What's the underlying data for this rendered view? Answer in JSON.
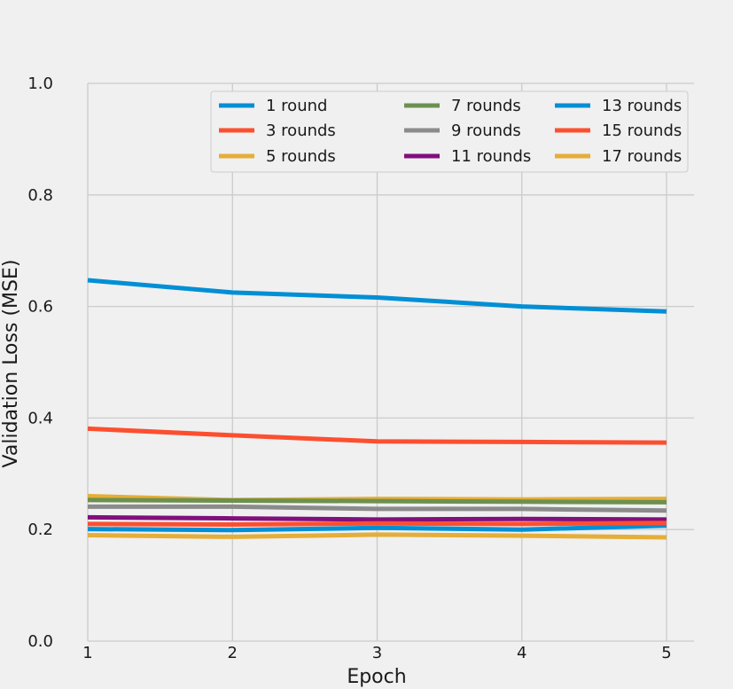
{
  "chart_data": {
    "type": "line",
    "title": "",
    "xlabel": "Epoch",
    "ylabel": "Validation Loss (MSE)",
    "x": [
      1,
      2,
      3,
      4,
      5
    ],
    "x_ticks": [
      1,
      2,
      3,
      4,
      5
    ],
    "xlim": [
      1,
      5
    ],
    "ylim": [
      0.0,
      1.0
    ],
    "y_ticks": [
      0.0,
      0.2,
      0.4,
      0.6,
      0.8,
      1.0
    ],
    "y_tick_labels": [
      "0.0",
      "0.2",
      "0.4",
      "0.6",
      "0.8",
      "1.0"
    ],
    "grid": true,
    "legend_position": "top-right",
    "legend_columns": 3,
    "series": [
      {
        "name": "1 round",
        "color": "#008fd5",
        "values": [
          0.647,
          0.625,
          0.616,
          0.6,
          0.591
        ]
      },
      {
        "name": "3 rounds",
        "color": "#fc4f30",
        "values": [
          0.381,
          0.369,
          0.358,
          0.357,
          0.356
        ]
      },
      {
        "name": "5 rounds",
        "color": "#e5ae38",
        "values": [
          0.26,
          0.253,
          0.255,
          0.254,
          0.255
        ]
      },
      {
        "name": "7 rounds",
        "color": "#6d904f",
        "values": [
          0.253,
          0.252,
          0.251,
          0.25,
          0.249
        ]
      },
      {
        "name": "9 rounds",
        "color": "#8b8b8b",
        "values": [
          0.241,
          0.241,
          0.237,
          0.237,
          0.234
        ]
      },
      {
        "name": "11 rounds",
        "color": "#810f7c",
        "values": [
          0.222,
          0.22,
          0.218,
          0.219,
          0.218
        ]
      },
      {
        "name": "13 rounds",
        "color": "#008fd5",
        "values": [
          0.201,
          0.199,
          0.203,
          0.2,
          0.207
        ]
      },
      {
        "name": "15 rounds",
        "color": "#fc4f30",
        "values": [
          0.21,
          0.209,
          0.211,
          0.21,
          0.212
        ]
      },
      {
        "name": "17 rounds",
        "color": "#e5ae38",
        "values": [
          0.19,
          0.187,
          0.191,
          0.189,
          0.186
        ]
      }
    ]
  }
}
